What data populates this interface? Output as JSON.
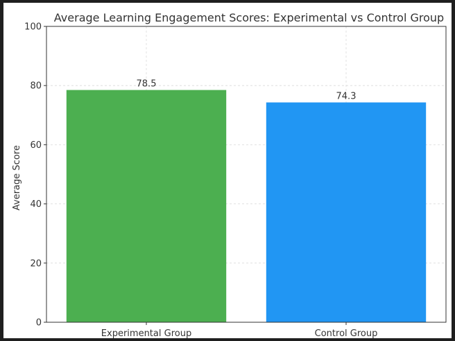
{
  "chart_data": {
    "type": "bar",
    "title": "Average Learning Engagement Scores: Experimental vs Control Group",
    "xlabel": "",
    "ylabel": "Average Score",
    "categories": [
      "Experimental Group",
      "Control Group"
    ],
    "values": [
      78.5,
      74.3
    ],
    "value_labels": [
      "78.5",
      "74.3"
    ],
    "colors": [
      "#4caf50",
      "#2196f3"
    ],
    "ylim": [
      0,
      100
    ],
    "yticks": [
      0,
      20,
      40,
      60,
      80,
      100
    ],
    "grid": true,
    "legend": "none"
  }
}
